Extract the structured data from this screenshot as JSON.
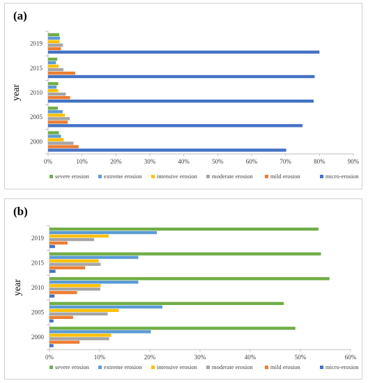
{
  "chart_data": [
    {
      "type": "bar",
      "orientation": "horizontal",
      "panel_label": "(a)",
      "ylabel": "year",
      "xlabel": "",
      "categories": [
        "2000",
        "2005",
        "2010",
        "2015",
        "2019"
      ],
      "xlim": [
        0,
        90
      ],
      "xticks": [
        "0%",
        "10%",
        "20%",
        "30%",
        "40%",
        "50%",
        "60%",
        "70%",
        "80%",
        "90%"
      ],
      "grid": false,
      "legend_position": "bottom",
      "series": [
        {
          "name": "severe erosion",
          "color": "#70ad47",
          "values": [
            3.2,
            2.9,
            3.0,
            2.7,
            3.3
          ]
        },
        {
          "name": "extreme erosion",
          "color": "#5b9bd5",
          "values": [
            3.8,
            4.3,
            2.5,
            2.3,
            3.5
          ]
        },
        {
          "name": "intensive erosion",
          "color": "#ffc000",
          "values": [
            4.6,
            5.0,
            3.0,
            3.1,
            3.4
          ]
        },
        {
          "name": "moderate erosion",
          "color": "#a5a5a5",
          "values": [
            7.5,
            6.4,
            5.2,
            4.5,
            4.4
          ]
        },
        {
          "name": "mild erosion",
          "color": "#ed7d31",
          "values": [
            9.0,
            5.8,
            6.5,
            8.0,
            3.8
          ]
        },
        {
          "name": "micro-erosion",
          "color": "#4472c4",
          "values": [
            70.2,
            75.0,
            78.3,
            78.6,
            80.0
          ]
        }
      ]
    },
    {
      "type": "bar",
      "orientation": "horizontal",
      "panel_label": "(b)",
      "ylabel": "year",
      "xlabel": "",
      "categories": [
        "2000",
        "2005",
        "2010",
        "2015",
        "2019"
      ],
      "xlim": [
        0,
        60
      ],
      "xticks": [
        "0%",
        "10%",
        "20%",
        "30%",
        "40%",
        "50%",
        "60%"
      ],
      "grid": false,
      "legend_position": "bottom",
      "series": [
        {
          "name": "severe erosion",
          "color": "#70ad47",
          "values": [
            49.0,
            46.7,
            55.8,
            54.1,
            53.6
          ]
        },
        {
          "name": "extreme erosion",
          "color": "#5b9bd5",
          "values": [
            20.2,
            22.5,
            17.7,
            17.7,
            21.4
          ]
        },
        {
          "name": "intensive erosion",
          "color": "#ffc000",
          "values": [
            12.3,
            13.8,
            10.2,
            9.8,
            11.8
          ]
        },
        {
          "name": "moderate erosion",
          "color": "#a5a5a5",
          "values": [
            11.9,
            11.6,
            10.1,
            10.2,
            8.9
          ]
        },
        {
          "name": "mild erosion",
          "color": "#ed7d31",
          "values": [
            6.0,
            4.7,
            5.5,
            7.1,
            3.6
          ]
        },
        {
          "name": "micro-erosion",
          "color": "#4472c4",
          "values": [
            0.8,
            0.8,
            1.0,
            1.2,
            1.1
          ]
        }
      ]
    }
  ]
}
